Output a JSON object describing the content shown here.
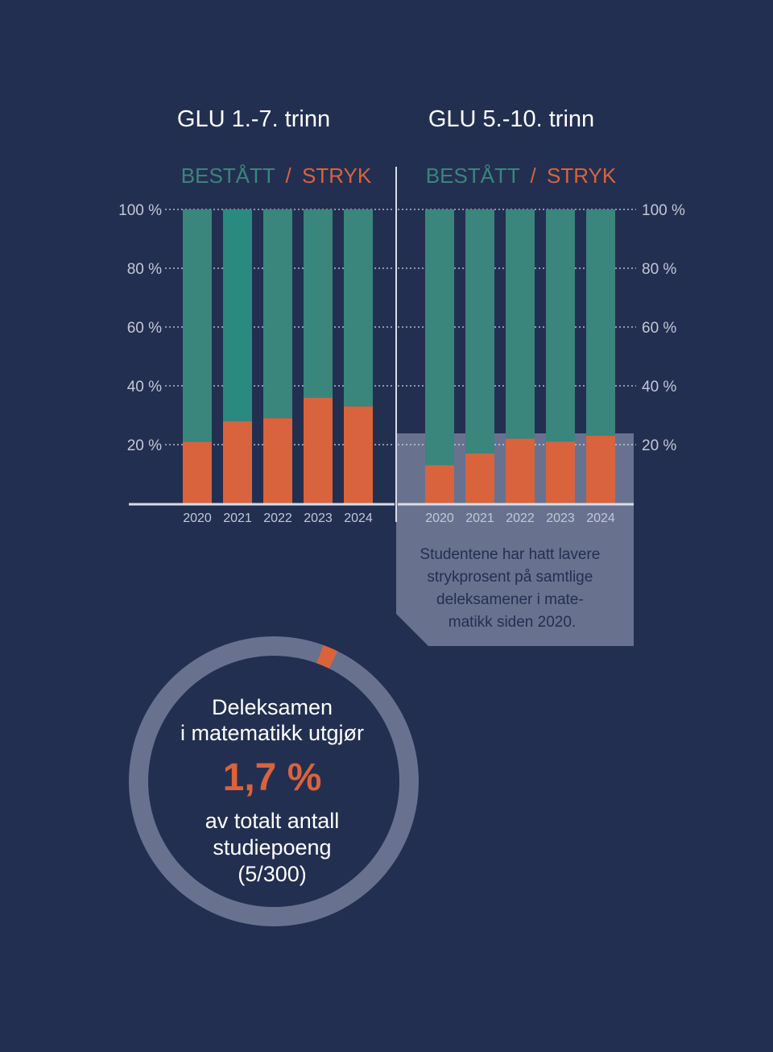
{
  "colors": {
    "background": "#232f51",
    "passed": "#3a857c",
    "passed_highlight": "#2a8a80",
    "failed": "#d9633c",
    "panel": "#68728f",
    "axis": "#d8dce6",
    "tick_text": "#c3c8d6",
    "title_text": "#ffffff",
    "body_text": "#232f51",
    "ring": "#68728f"
  },
  "legend": {
    "passed": "BESTÅTT",
    "separator": "/",
    "failed": "STRYK"
  },
  "chart_data": [
    {
      "type": "bar",
      "stacked": true,
      "title": "GLU 1.-7. trinn",
      "categories": [
        "2020",
        "2021",
        "2022",
        "2023",
        "2024"
      ],
      "series": [
        {
          "name": "STRYK",
          "values": [
            21,
            28,
            29,
            36,
            33
          ]
        },
        {
          "name": "BESTÅTT",
          "values": [
            79,
            72,
            71,
            64,
            67
          ]
        }
      ],
      "ylim": [
        0,
        100
      ],
      "yticks": [
        "20 %",
        "40 %",
        "60 %",
        "80 %",
        "100 %"
      ],
      "ytick_values": [
        20,
        40,
        60,
        80,
        100
      ],
      "axis_side": "left",
      "grid": "dotted"
    },
    {
      "type": "bar",
      "stacked": true,
      "title": "GLU 5.-10. trinn",
      "categories": [
        "2020",
        "2021",
        "2022",
        "2023",
        "2024"
      ],
      "series": [
        {
          "name": "STRYK",
          "values": [
            13,
            17,
            22,
            21,
            23
          ]
        },
        {
          "name": "BESTÅTT",
          "values": [
            87,
            83,
            78,
            79,
            77
          ]
        }
      ],
      "ylim": [
        0,
        100
      ],
      "yticks": [
        "20 %",
        "40 %",
        "60 %",
        "80 %",
        "100 %"
      ],
      "ytick_values": [
        20,
        40,
        60,
        80,
        100
      ],
      "axis_side": "right",
      "grid": "dotted"
    }
  ],
  "note": {
    "lines": [
      "Studentene har hatt lavere",
      "strykprosent på samtlige",
      "deleksamener i mate-",
      "matikk siden 2020."
    ]
  },
  "donut": {
    "value_percent": 1.7,
    "line1": "Deleksamen",
    "line2": "i matematikk utgjør",
    "highlight": "1,7 %",
    "line3": "av totalt antall",
    "line4": "studiepoeng",
    "line5": "(5/300)"
  }
}
